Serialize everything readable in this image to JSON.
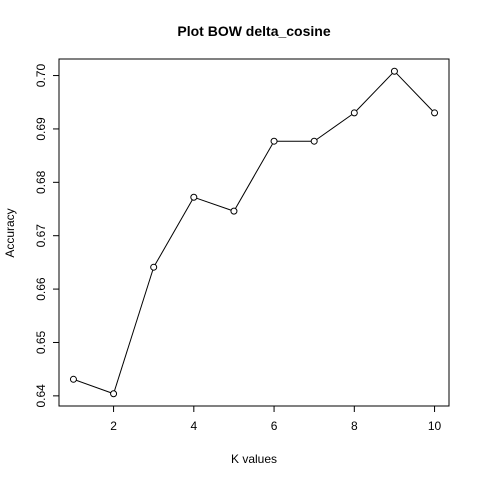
{
  "chart_data": {
    "type": "line",
    "title": "Plot BOW delta_cosine",
    "xlabel": "K values",
    "ylabel": "Accuracy",
    "x": [
      1,
      2,
      3,
      4,
      5,
      6,
      7,
      8,
      9,
      10
    ],
    "values": [
      0.6431,
      0.6404,
      0.6641,
      0.6772,
      0.6746,
      0.6877,
      0.6877,
      0.693,
      0.7008,
      0.693
    ],
    "xlim": [
      0.64,
      10.36
    ],
    "ylim": [
      0.6381,
      0.7031
    ],
    "xticks": [
      2,
      4,
      6,
      8,
      10
    ],
    "xtick_labels": [
      "2",
      "4",
      "6",
      "8",
      "10"
    ],
    "yticks": [
      0.64,
      0.65,
      0.66,
      0.67,
      0.68,
      0.69,
      0.7
    ],
    "ytick_labels": [
      "0.64",
      "0.65",
      "0.66",
      "0.67",
      "0.68",
      "0.69",
      "0.70"
    ],
    "grid": false,
    "marker": "open-circle",
    "line_color": "#000000"
  }
}
